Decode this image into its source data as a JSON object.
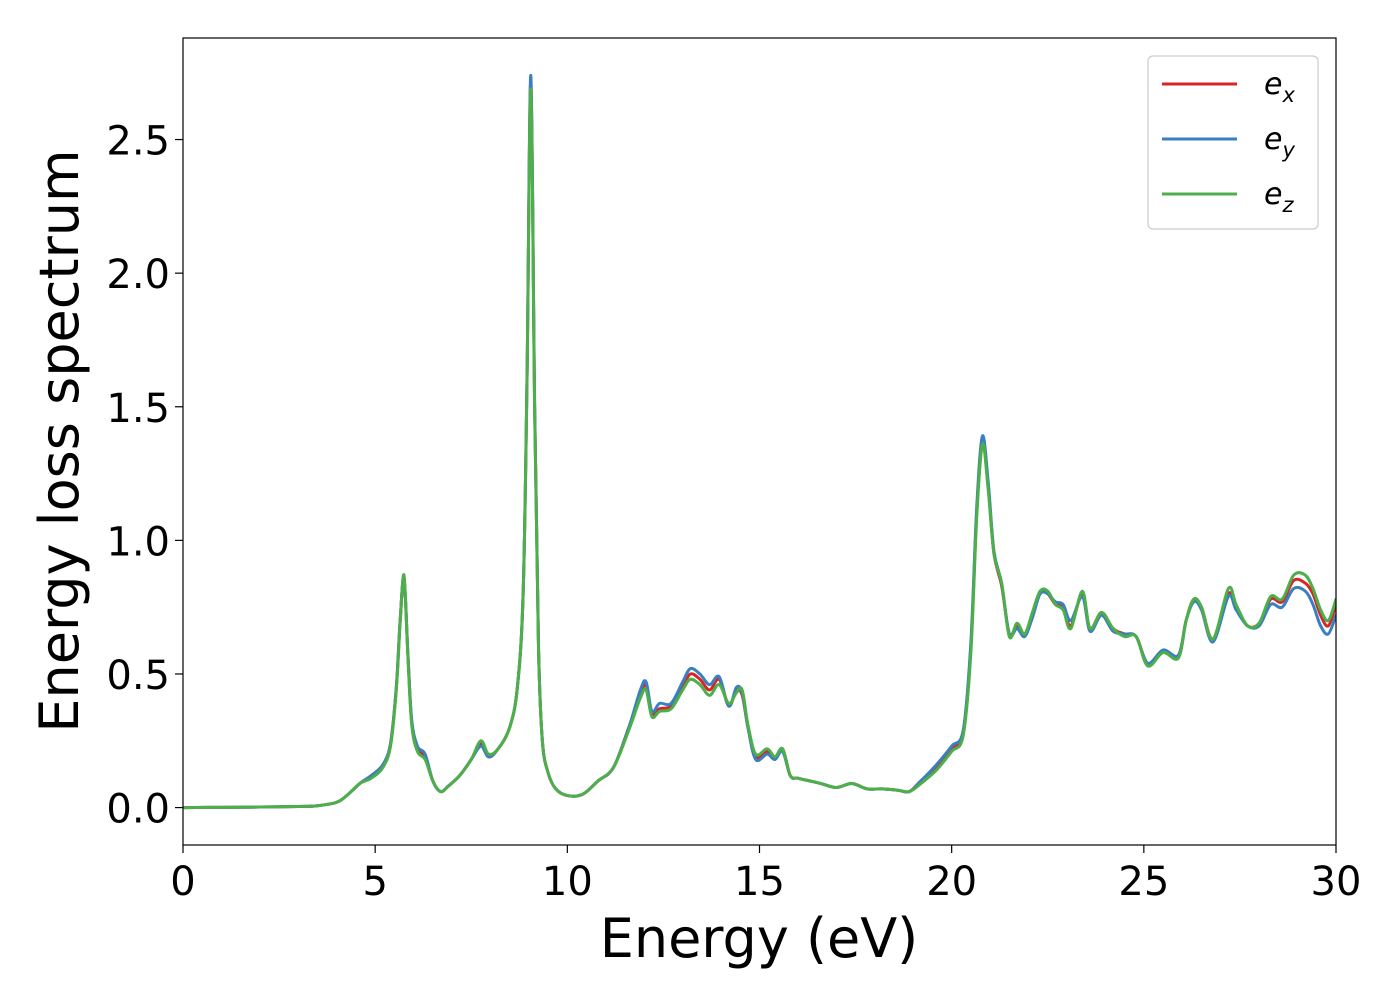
{
  "chart_data": {
    "type": "line",
    "xlabel": "Energy (eV)",
    "ylabel": "Energy loss spectrum",
    "xlim": [
      0,
      30
    ],
    "ylim": [
      -0.14,
      2.88
    ],
    "xticks": [
      0,
      5,
      10,
      15,
      20,
      25,
      30
    ],
    "xtick_labels": [
      "0",
      "5",
      "10",
      "15",
      "20",
      "25",
      "30"
    ],
    "yticks": [
      0.0,
      0.5,
      1.0,
      1.5,
      2.0,
      2.5
    ],
    "ytick_labels": [
      "0.0",
      "0.5",
      "1.0",
      "1.5",
      "2.0",
      "2.5"
    ],
    "grid": false,
    "legend_position": "top-right",
    "series": [
      {
        "name": "e_x",
        "label_base": "e",
        "label_sub": "x",
        "color": "#d62728",
        "x": [
          0,
          1,
          2,
          3,
          3.5,
          4,
          4.3,
          4.6,
          4.9,
          5.2,
          5.4,
          5.55,
          5.65,
          5.75,
          5.85,
          5.95,
          6.1,
          6.3,
          6.5,
          6.7,
          6.9,
          7.2,
          7.5,
          7.75,
          7.95,
          8.2,
          8.5,
          8.7,
          8.85,
          8.95,
          9.05,
          9.15,
          9.25,
          9.35,
          9.5,
          9.7,
          10,
          10.4,
          10.8,
          11.2,
          11.6,
          11.9,
          12.05,
          12.2,
          12.4,
          12.7,
          13,
          13.2,
          13.45,
          13.7,
          13.95,
          14.2,
          14.4,
          14.55,
          14.7,
          14.9,
          15.2,
          15.4,
          15.6,
          15.8,
          16,
          16.3,
          16.6,
          17,
          17.4,
          17.8,
          18.2,
          18.6,
          18.9,
          19.2,
          19.6,
          20,
          20.3,
          20.5,
          20.65,
          20.8,
          20.95,
          21.1,
          21.3,
          21.5,
          21.7,
          21.9,
          22.1,
          22.3,
          22.5,
          22.7,
          22.9,
          23.1,
          23.4,
          23.6,
          23.9,
          24.2,
          24.5,
          24.8,
          25.1,
          25.5,
          25.9,
          26.1,
          26.3,
          26.5,
          26.8,
          27.2,
          27.4,
          27.7,
          28,
          28.3,
          28.6,
          28.9,
          29.2,
          29.4,
          29.6,
          29.8,
          30
        ],
        "y": [
          0,
          0.001,
          0.002,
          0.004,
          0.007,
          0.02,
          0.05,
          0.09,
          0.12,
          0.16,
          0.24,
          0.45,
          0.7,
          0.86,
          0.58,
          0.32,
          0.22,
          0.19,
          0.1,
          0.06,
          0.08,
          0.12,
          0.18,
          0.24,
          0.19,
          0.22,
          0.3,
          0.45,
          0.8,
          1.6,
          2.72,
          1.5,
          0.6,
          0.25,
          0.13,
          0.07,
          0.045,
          0.05,
          0.1,
          0.15,
          0.3,
          0.42,
          0.46,
          0.35,
          0.37,
          0.38,
          0.45,
          0.5,
          0.48,
          0.44,
          0.48,
          0.38,
          0.44,
          0.42,
          0.3,
          0.19,
          0.21,
          0.18,
          0.22,
          0.12,
          0.11,
          0.1,
          0.09,
          0.075,
          0.09,
          0.07,
          0.07,
          0.065,
          0.06,
          0.1,
          0.15,
          0.22,
          0.28,
          0.6,
          1.1,
          1.37,
          1.2,
          0.95,
          0.83,
          0.65,
          0.68,
          0.65,
          0.72,
          0.8,
          0.8,
          0.76,
          0.75,
          0.68,
          0.8,
          0.67,
          0.73,
          0.67,
          0.65,
          0.64,
          0.54,
          0.58,
          0.57,
          0.7,
          0.78,
          0.75,
          0.63,
          0.8,
          0.75,
          0.68,
          0.69,
          0.78,
          0.77,
          0.85,
          0.84,
          0.8,
          0.72,
          0.68,
          0.76
        ]
      },
      {
        "name": "e_y",
        "label_base": "e",
        "label_sub": "y",
        "color": "#3a7fc1",
        "x": [
          0,
          1,
          2,
          3,
          3.5,
          4,
          4.3,
          4.6,
          4.9,
          5.2,
          5.4,
          5.55,
          5.65,
          5.75,
          5.85,
          5.95,
          6.1,
          6.3,
          6.5,
          6.7,
          6.9,
          7.2,
          7.5,
          7.75,
          7.95,
          8.2,
          8.5,
          8.7,
          8.85,
          8.95,
          9.05,
          9.15,
          9.25,
          9.35,
          9.5,
          9.7,
          10,
          10.4,
          10.8,
          11.2,
          11.6,
          11.9,
          12.05,
          12.2,
          12.4,
          12.7,
          13,
          13.2,
          13.45,
          13.7,
          13.95,
          14.2,
          14.4,
          14.55,
          14.7,
          14.9,
          15.2,
          15.4,
          15.6,
          15.8,
          16,
          16.3,
          16.6,
          17,
          17.4,
          17.8,
          18.2,
          18.6,
          18.9,
          19.2,
          19.6,
          20,
          20.3,
          20.5,
          20.65,
          20.8,
          20.95,
          21.1,
          21.3,
          21.5,
          21.7,
          21.9,
          22.1,
          22.3,
          22.5,
          22.7,
          22.9,
          23.1,
          23.4,
          23.6,
          23.9,
          24.2,
          24.5,
          24.8,
          25.1,
          25.5,
          25.9,
          26.1,
          26.3,
          26.5,
          26.8,
          27.2,
          27.4,
          27.7,
          28,
          28.3,
          28.6,
          28.9,
          29.2,
          29.4,
          29.6,
          29.8,
          30
        ],
        "y": [
          0,
          0.001,
          0.002,
          0.004,
          0.007,
          0.02,
          0.05,
          0.09,
          0.12,
          0.16,
          0.24,
          0.45,
          0.7,
          0.86,
          0.58,
          0.33,
          0.23,
          0.2,
          0.1,
          0.06,
          0.08,
          0.12,
          0.18,
          0.23,
          0.19,
          0.22,
          0.3,
          0.45,
          0.8,
          1.6,
          2.74,
          1.5,
          0.6,
          0.25,
          0.13,
          0.07,
          0.045,
          0.05,
          0.1,
          0.15,
          0.3,
          0.44,
          0.47,
          0.36,
          0.39,
          0.39,
          0.47,
          0.52,
          0.5,
          0.46,
          0.49,
          0.38,
          0.45,
          0.43,
          0.3,
          0.18,
          0.2,
          0.18,
          0.21,
          0.12,
          0.11,
          0.1,
          0.09,
          0.075,
          0.09,
          0.07,
          0.07,
          0.065,
          0.06,
          0.1,
          0.16,
          0.23,
          0.29,
          0.62,
          1.12,
          1.39,
          1.22,
          0.96,
          0.84,
          0.65,
          0.67,
          0.64,
          0.71,
          0.8,
          0.8,
          0.77,
          0.76,
          0.7,
          0.79,
          0.66,
          0.72,
          0.66,
          0.65,
          0.64,
          0.54,
          0.59,
          0.57,
          0.7,
          0.77,
          0.74,
          0.62,
          0.79,
          0.74,
          0.68,
          0.68,
          0.76,
          0.75,
          0.82,
          0.81,
          0.76,
          0.68,
          0.65,
          0.72
        ]
      },
      {
        "name": "e_z",
        "label_base": "e",
        "label_sub": "z",
        "color": "#4daf4a",
        "x": [
          0,
          1,
          2,
          3,
          3.5,
          4,
          4.3,
          4.6,
          4.9,
          5.2,
          5.4,
          5.55,
          5.65,
          5.75,
          5.85,
          5.95,
          6.1,
          6.3,
          6.5,
          6.7,
          6.9,
          7.2,
          7.5,
          7.75,
          7.95,
          8.2,
          8.5,
          8.7,
          8.85,
          8.95,
          9.05,
          9.15,
          9.25,
          9.35,
          9.5,
          9.7,
          10,
          10.4,
          10.8,
          11.2,
          11.6,
          11.9,
          12.05,
          12.2,
          12.4,
          12.7,
          13,
          13.2,
          13.45,
          13.7,
          13.95,
          14.2,
          14.4,
          14.55,
          14.7,
          14.9,
          15.2,
          15.4,
          15.6,
          15.8,
          16,
          16.3,
          16.6,
          17,
          17.4,
          17.8,
          18.2,
          18.6,
          18.9,
          19.2,
          19.6,
          20,
          20.3,
          20.5,
          20.65,
          20.8,
          20.95,
          21.1,
          21.3,
          21.5,
          21.7,
          21.9,
          22.1,
          22.3,
          22.5,
          22.7,
          22.9,
          23.1,
          23.4,
          23.6,
          23.9,
          24.2,
          24.5,
          24.8,
          25.1,
          25.5,
          25.9,
          26.1,
          26.3,
          26.5,
          26.8,
          27.2,
          27.4,
          27.7,
          28,
          28.3,
          28.6,
          28.9,
          29.2,
          29.4,
          29.6,
          29.8,
          30
        ],
        "y": [
          0,
          0.001,
          0.002,
          0.004,
          0.007,
          0.02,
          0.05,
          0.09,
          0.11,
          0.15,
          0.23,
          0.44,
          0.69,
          0.87,
          0.57,
          0.31,
          0.21,
          0.18,
          0.1,
          0.06,
          0.08,
          0.12,
          0.18,
          0.25,
          0.2,
          0.22,
          0.3,
          0.45,
          0.8,
          1.58,
          2.69,
          1.48,
          0.6,
          0.25,
          0.13,
          0.07,
          0.045,
          0.05,
          0.1,
          0.15,
          0.29,
          0.41,
          0.44,
          0.34,
          0.36,
          0.37,
          0.44,
          0.48,
          0.46,
          0.42,
          0.46,
          0.39,
          0.43,
          0.44,
          0.31,
          0.2,
          0.22,
          0.19,
          0.22,
          0.12,
          0.11,
          0.1,
          0.09,
          0.075,
          0.09,
          0.07,
          0.07,
          0.065,
          0.06,
          0.09,
          0.14,
          0.21,
          0.27,
          0.58,
          1.08,
          1.36,
          1.19,
          0.95,
          0.84,
          0.64,
          0.69,
          0.65,
          0.73,
          0.81,
          0.81,
          0.76,
          0.74,
          0.67,
          0.81,
          0.67,
          0.73,
          0.67,
          0.64,
          0.64,
          0.53,
          0.58,
          0.56,
          0.7,
          0.78,
          0.75,
          0.63,
          0.82,
          0.76,
          0.68,
          0.69,
          0.79,
          0.78,
          0.87,
          0.87,
          0.82,
          0.74,
          0.7,
          0.78
        ]
      }
    ]
  }
}
